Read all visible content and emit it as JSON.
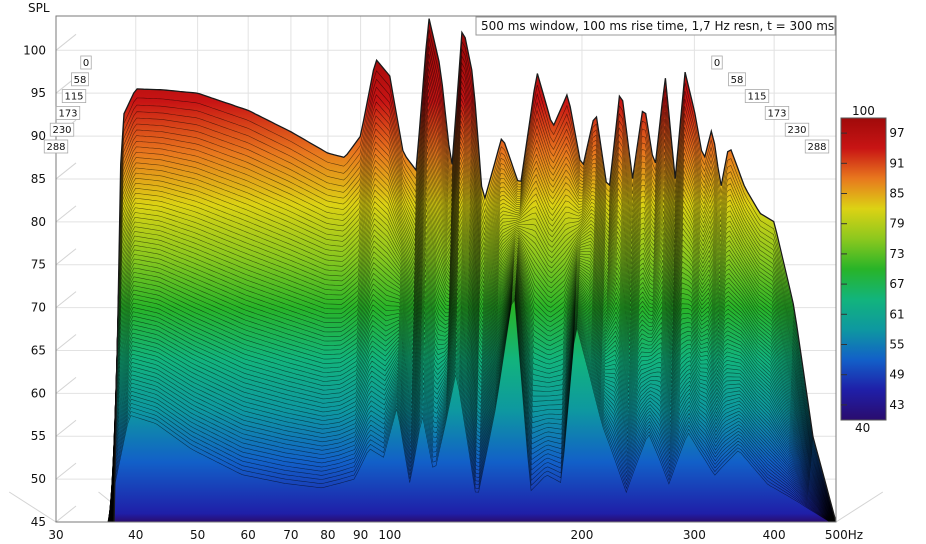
{
  "chart_data": {
    "type": "waterfall-3d",
    "title": "500 ms window, 100 ms rise time,  1,7 Hz resn, t = 300 ms",
    "ylabel": "SPL",
    "xunit": "Hz",
    "xscale": "log",
    "xlim": [
      30,
      500
    ],
    "ylim": [
      45,
      104
    ],
    "xticks": [
      30,
      40,
      50,
      60,
      70,
      80,
      90,
      100,
      200,
      300,
      400,
      500
    ],
    "yticks": [
      45,
      50,
      55,
      60,
      65,
      70,
      75,
      80,
      85,
      90,
      95,
      100
    ],
    "time_axis_labels": [
      "0",
      "58",
      "115",
      "173",
      "230",
      "288"
    ],
    "time_axis_unit": "ms",
    "colorbar": {
      "min": 40,
      "max": 100,
      "ticks": [
        97,
        91,
        85,
        79,
        73,
        67,
        61,
        55,
        49,
        43
      ],
      "min_label": "40",
      "max_label": "100",
      "colors": [
        "#2a0c6e",
        "#1f1fa8",
        "#1260c8",
        "#0e98a0",
        "#12b47c",
        "#28b428",
        "#8cc81e",
        "#dcd214",
        "#e8781e",
        "#c81414",
        "#a00a0a"
      ]
    },
    "front_curve": {
      "x": [
        37,
        38,
        40,
        44,
        50,
        60,
        70,
        80,
        85,
        90,
        95,
        100,
        105,
        110,
        115,
        120,
        125,
        130,
        135,
        140,
        150,
        160,
        170,
        180,
        190,
        200,
        210,
        220,
        230,
        240,
        250,
        260,
        270,
        280,
        290,
        300,
        310,
        320,
        330,
        340,
        360,
        380,
        400,
        430,
        460,
        500
      ],
      "y": [
        45,
        92,
        95.5,
        95.4,
        95,
        93,
        90.5,
        88,
        87.5,
        90,
        99,
        97,
        88,
        86,
        104,
        98,
        86,
        103,
        97,
        82,
        90,
        84,
        97.5,
        91,
        95,
        86,
        93,
        83,
        96,
        85,
        94,
        86,
        97,
        85,
        97.5,
        93,
        87,
        91,
        84,
        89,
        84,
        81,
        80,
        70,
        55,
        45
      ]
    },
    "back_curve": {
      "x": [
        37,
        40,
        44,
        50,
        60,
        70,
        80,
        90,
        95,
        100,
        105,
        110,
        115,
        120,
        125,
        130,
        140,
        150,
        160,
        170,
        180,
        190,
        200,
        220,
        240,
        260,
        280,
        300,
        330,
        360,
        400,
        450,
        500
      ],
      "y": [
        45,
        57,
        56,
        53,
        50,
        49,
        48.5,
        49.5,
        53,
        52,
        58,
        49,
        57,
        50,
        56,
        62,
        47,
        58,
        72,
        48,
        50,
        49,
        68,
        56,
        48,
        55,
        49,
        55,
        50,
        53,
        49,
        47,
        45
      ]
    }
  }
}
